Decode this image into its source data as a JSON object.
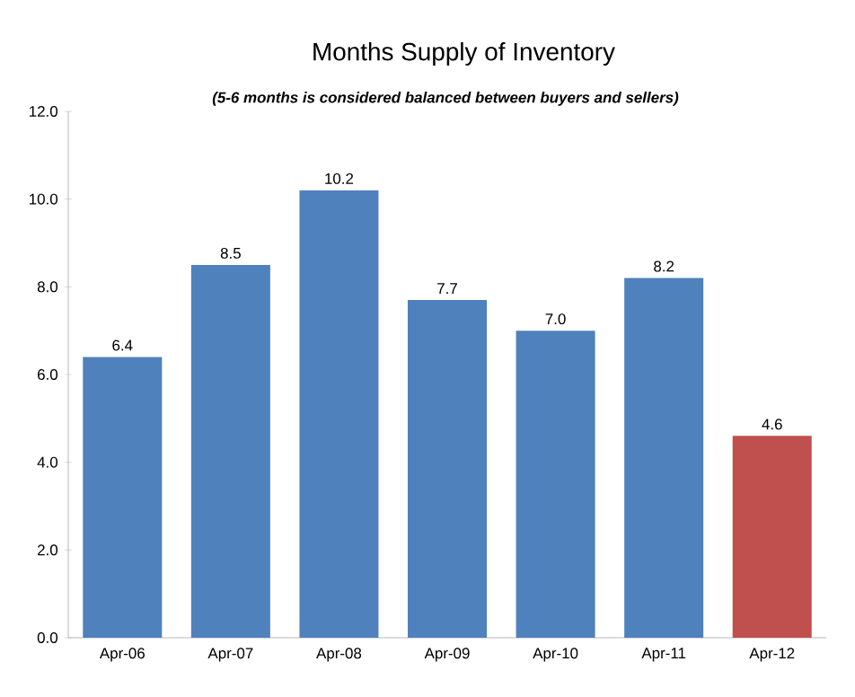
{
  "chart_data": {
    "type": "bar",
    "title": "Months Supply of Inventory",
    "subtitle": "(5-6 months is considered balanced between buyers and sellers)",
    "categories": [
      "Apr-06",
      "Apr-07",
      "Apr-08",
      "Apr-09",
      "Apr-10",
      "Apr-11",
      "Apr-12"
    ],
    "values": [
      6.4,
      8.5,
      10.2,
      7.7,
      7.0,
      8.2,
      4.6
    ],
    "value_labels": [
      "6.4",
      "8.5",
      "10.2",
      "7.7",
      "7.0",
      "8.2",
      "4.6"
    ],
    "colors": [
      "#4f81bd",
      "#4f81bd",
      "#4f81bd",
      "#4f81bd",
      "#4f81bd",
      "#4f81bd",
      "#c0504d"
    ],
    "ylim": [
      0,
      12
    ],
    "yticks": [
      {
        "value": 0,
        "label": "0.0"
      },
      {
        "value": 2,
        "label": "2.0"
      },
      {
        "value": 4,
        "label": "4.0"
      },
      {
        "value": 6,
        "label": "6.0"
      },
      {
        "value": 8,
        "label": "8.0"
      },
      {
        "value": 10,
        "label": "10.0"
      },
      {
        "value": 12,
        "label": "12.0"
      }
    ],
    "grid": false
  }
}
